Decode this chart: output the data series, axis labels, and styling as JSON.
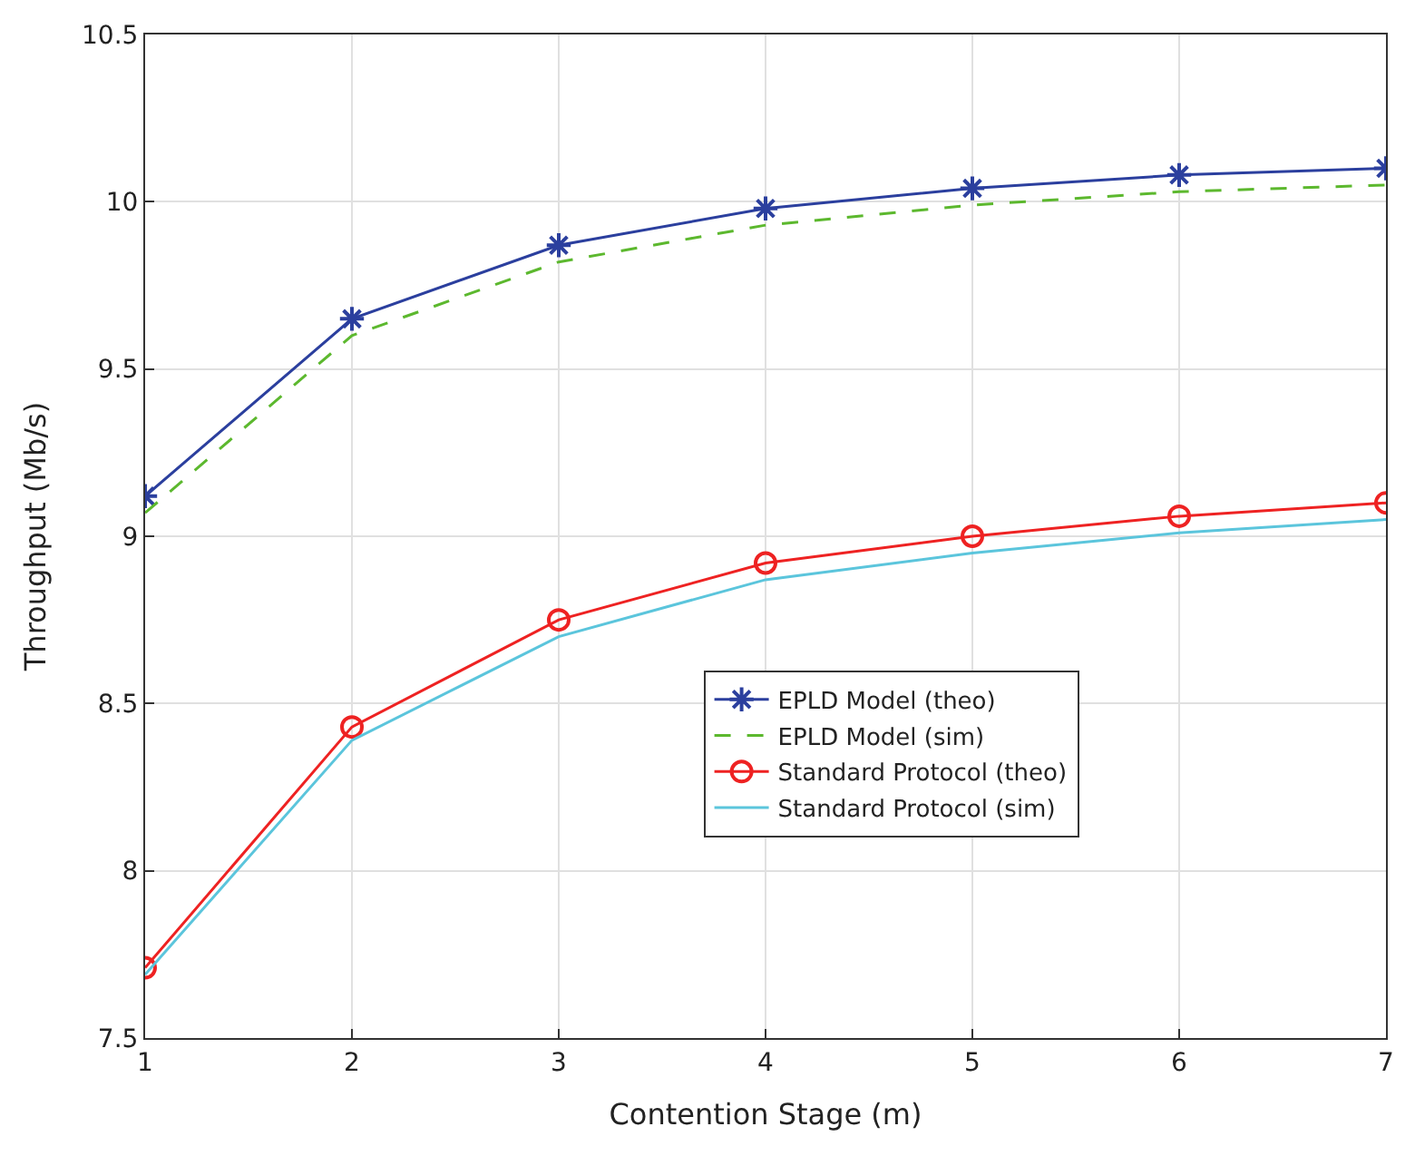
{
  "chart_data": {
    "type": "line",
    "xlabel": "Contention Stage (m)",
    "ylabel": "Throughput (Mb/s)",
    "x": [
      1,
      2,
      3,
      4,
      5,
      6,
      7
    ],
    "series": [
      {
        "name": "EPLD Model (theo)",
        "color": "#2b3f9e",
        "marker": "cross",
        "line_style": "solid",
        "values": [
          9.12,
          9.65,
          9.87,
          9.98,
          10.04,
          10.08,
          10.1
        ]
      },
      {
        "name": "EPLD Model (sim)",
        "color": "#5cb82e",
        "marker": "none",
        "line_style": "dashed",
        "values": [
          9.07,
          9.6,
          9.82,
          9.93,
          9.99,
          10.03,
          10.05
        ]
      },
      {
        "name": "Standard Protocol (theo)",
        "color": "#ee2222",
        "marker": "circle",
        "line_style": "solid",
        "values": [
          7.71,
          8.43,
          8.75,
          8.92,
          9.0,
          9.06,
          9.1
        ]
      },
      {
        "name": "Standard Protocol (sim)",
        "color": "#5bc5dc",
        "marker": "none",
        "line_style": "solid",
        "values": [
          7.69,
          8.39,
          8.7,
          8.87,
          8.95,
          9.01,
          9.05
        ]
      }
    ],
    "xlim": [
      1,
      7
    ],
    "xticks": [
      1,
      2,
      3,
      4,
      5,
      6,
      7
    ],
    "ylim": [
      7.5,
      10.5
    ],
    "yticks": [
      7.5,
      8,
      8.5,
      9,
      9.5,
      10,
      10.5
    ],
    "grid": true,
    "legend": "bottom right"
  }
}
